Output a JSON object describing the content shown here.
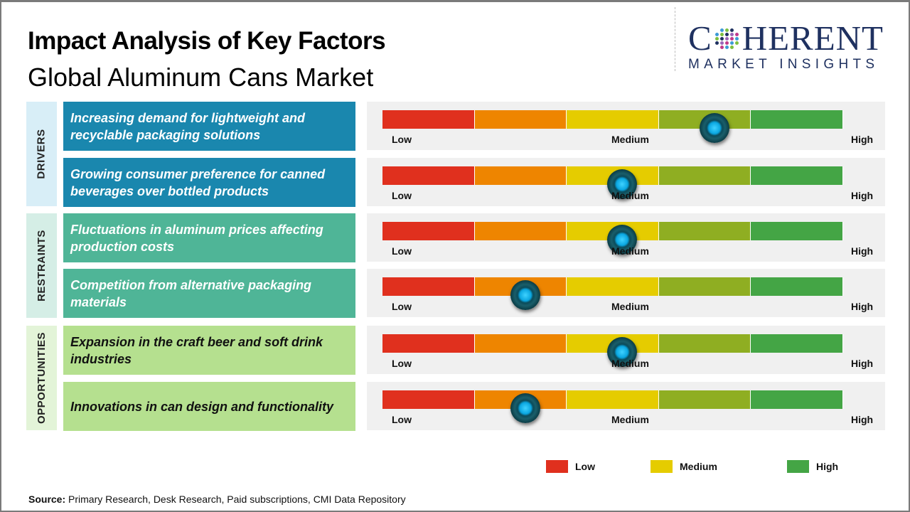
{
  "header": {
    "title": "Impact Analysis of Key Factors",
    "subtitle": "Global Aluminum Cans Market"
  },
  "logo": {
    "name_part1": "C",
    "name_part2": "HERENT",
    "tagline": "MARKET INSIGHTS"
  },
  "scale": {
    "low": "Low",
    "medium": "Medium",
    "high": "High",
    "segment_colors": [
      "#e0301e",
      "#ee8500",
      "#e5cc00",
      "#8fae22",
      "#44a545"
    ]
  },
  "categories": [
    {
      "label": "DRIVERS",
      "bg": "#d8eef7",
      "factor_bg": "#1a87ae",
      "text_color": "#ffffff"
    },
    {
      "label": "RESTRAINTS",
      "bg": "#d5eee6",
      "factor_bg": "#4fb597",
      "text_color": "#ffffff"
    },
    {
      "label": "OPPORTUNITIES",
      "bg": "#e3f4d8",
      "factor_bg": "#b5e08f",
      "text_color": "#111111"
    }
  ],
  "factors": [
    {
      "text": "Increasing demand for lightweight and recyclable packaging solutions",
      "category": 0,
      "impact": 0.72
    },
    {
      "text": "Growing consumer preference for canned beverages over bottled products",
      "category": 0,
      "impact": 0.52
    },
    {
      "text": "Fluctuations in aluminum prices affecting production costs",
      "category": 1,
      "impact": 0.52
    },
    {
      "text": "Competition from alternative packaging materials",
      "category": 1,
      "impact": 0.31
    },
    {
      "text": "Expansion in the craft beer and soft drink industries",
      "category": 2,
      "impact": 0.52
    },
    {
      "text": "Innovations in can design and functionality",
      "category": 2,
      "impact": 0.31
    }
  ],
  "legend": [
    {
      "label": "Low",
      "color": "#e0301e"
    },
    {
      "label": "Medium",
      "color": "#e5cc00"
    },
    {
      "label": "High",
      "color": "#44a545"
    }
  ],
  "source": {
    "label": "Source:",
    "text": " Primary Research, Desk Research, Paid subscriptions, CMI Data Repository"
  }
}
